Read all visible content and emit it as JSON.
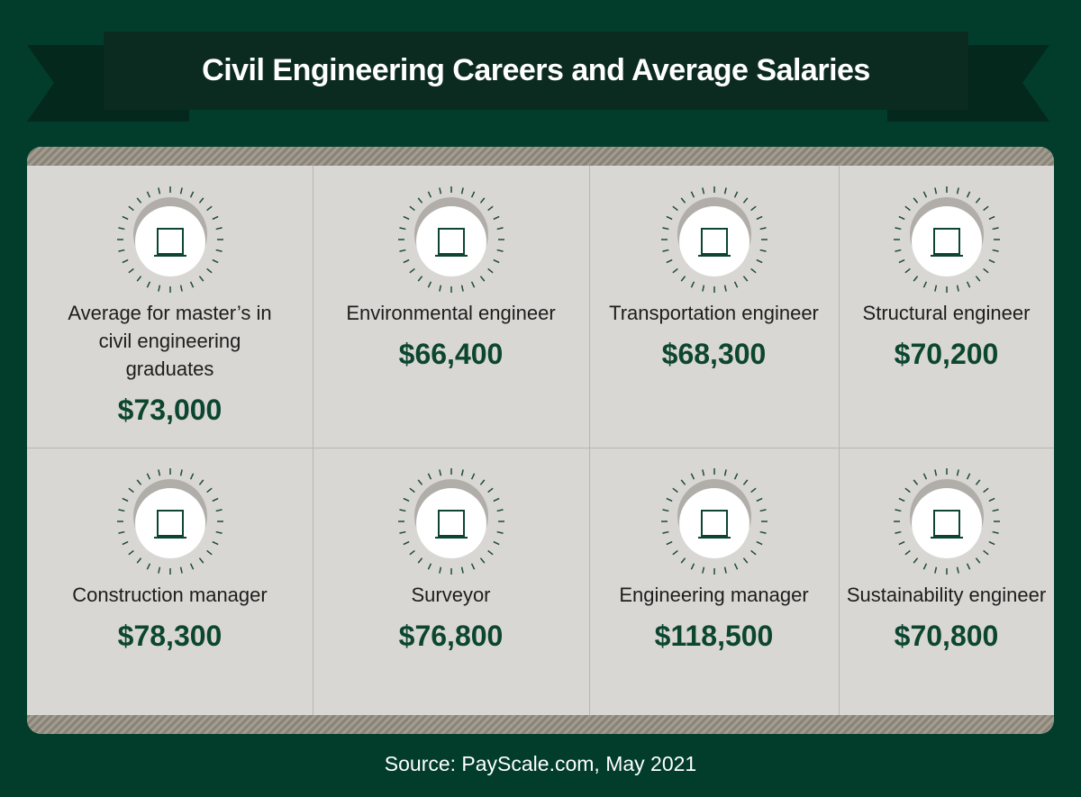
{
  "title": "Civil Engineering Careers and Average Salaries",
  "cards": [
    {
      "label": "Average for master’s in civil engineering graduates",
      "salary": "$73,000"
    },
    {
      "label": "Environmental engineer",
      "salary": "$66,400"
    },
    {
      "label": "Transportation engineer",
      "salary": "$68,300"
    },
    {
      "label": "Structural engineer",
      "salary": "$70,200"
    },
    {
      "label": "Construction manager",
      "salary": "$78,300"
    },
    {
      "label": "Surveyor",
      "salary": "$76,800"
    },
    {
      "label": "Engineering manager",
      "salary": "$118,500"
    },
    {
      "label": "Sustainability engineer",
      "salary": "$70,800"
    }
  ],
  "source": "Source: PayScale.com, May 2021"
}
